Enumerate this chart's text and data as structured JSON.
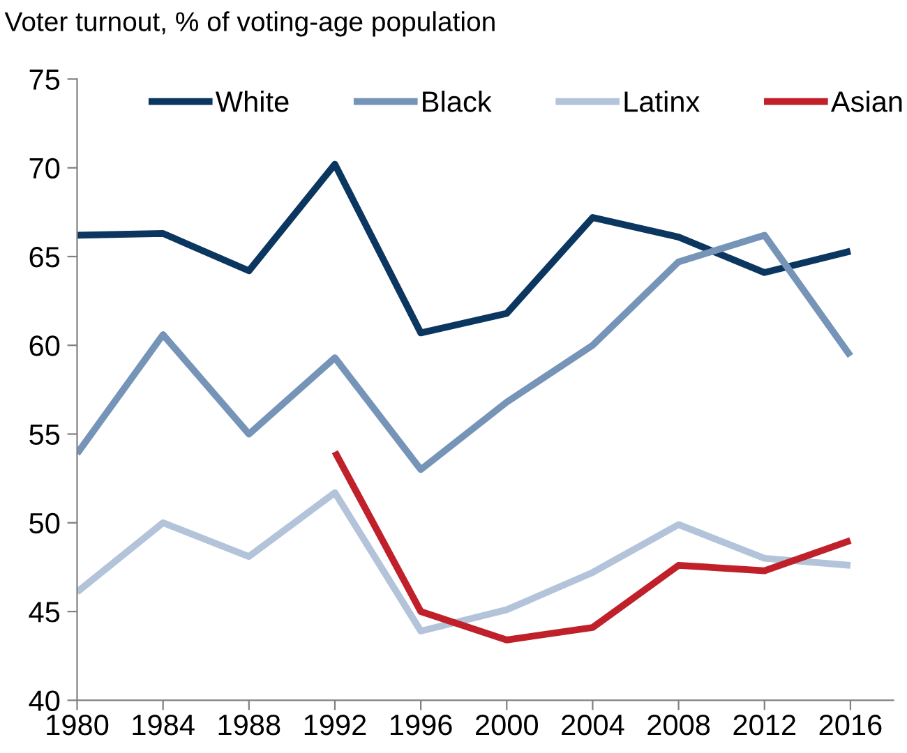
{
  "chart_data": {
    "type": "line",
    "title": "Voter turnout, % of voting-age population",
    "x": [
      1980,
      1984,
      1988,
      1992,
      1996,
      2000,
      2004,
      2008,
      2012,
      2016
    ],
    "series": [
      {
        "name": "White",
        "color": "#0b365f",
        "values": [
          66.2,
          66.3,
          64.2,
          70.2,
          60.7,
          61.8,
          67.2,
          66.1,
          64.1,
          65.3
        ]
      },
      {
        "name": "Black",
        "color": "#7594b8",
        "values": [
          53.9,
          60.6,
          55.0,
          59.3,
          53.0,
          56.8,
          60.0,
          64.7,
          66.2,
          59.4
        ]
      },
      {
        "name": "Latinx",
        "color": "#b3c3da",
        "values": [
          46.1,
          50.0,
          48.1,
          51.7,
          43.9,
          45.1,
          47.2,
          49.9,
          48.0,
          47.6
        ]
      },
      {
        "name": "Asian",
        "color": "#c0202a",
        "values": [
          null,
          null,
          null,
          54.0,
          45.0,
          43.4,
          44.1,
          47.6,
          47.3,
          49.0
        ]
      }
    ],
    "xlim": [
      1980,
      2018
    ],
    "xticks": [
      1980,
      1984,
      1988,
      1992,
      1996,
      2000,
      2004,
      2008,
      2012,
      2016
    ],
    "ylim": [
      40,
      75
    ],
    "yticks": [
      40,
      45,
      50,
      55,
      60,
      65,
      70,
      75
    ],
    "grid": false,
    "legend": "top",
    "marker": "none",
    "line_style": "solid"
  }
}
